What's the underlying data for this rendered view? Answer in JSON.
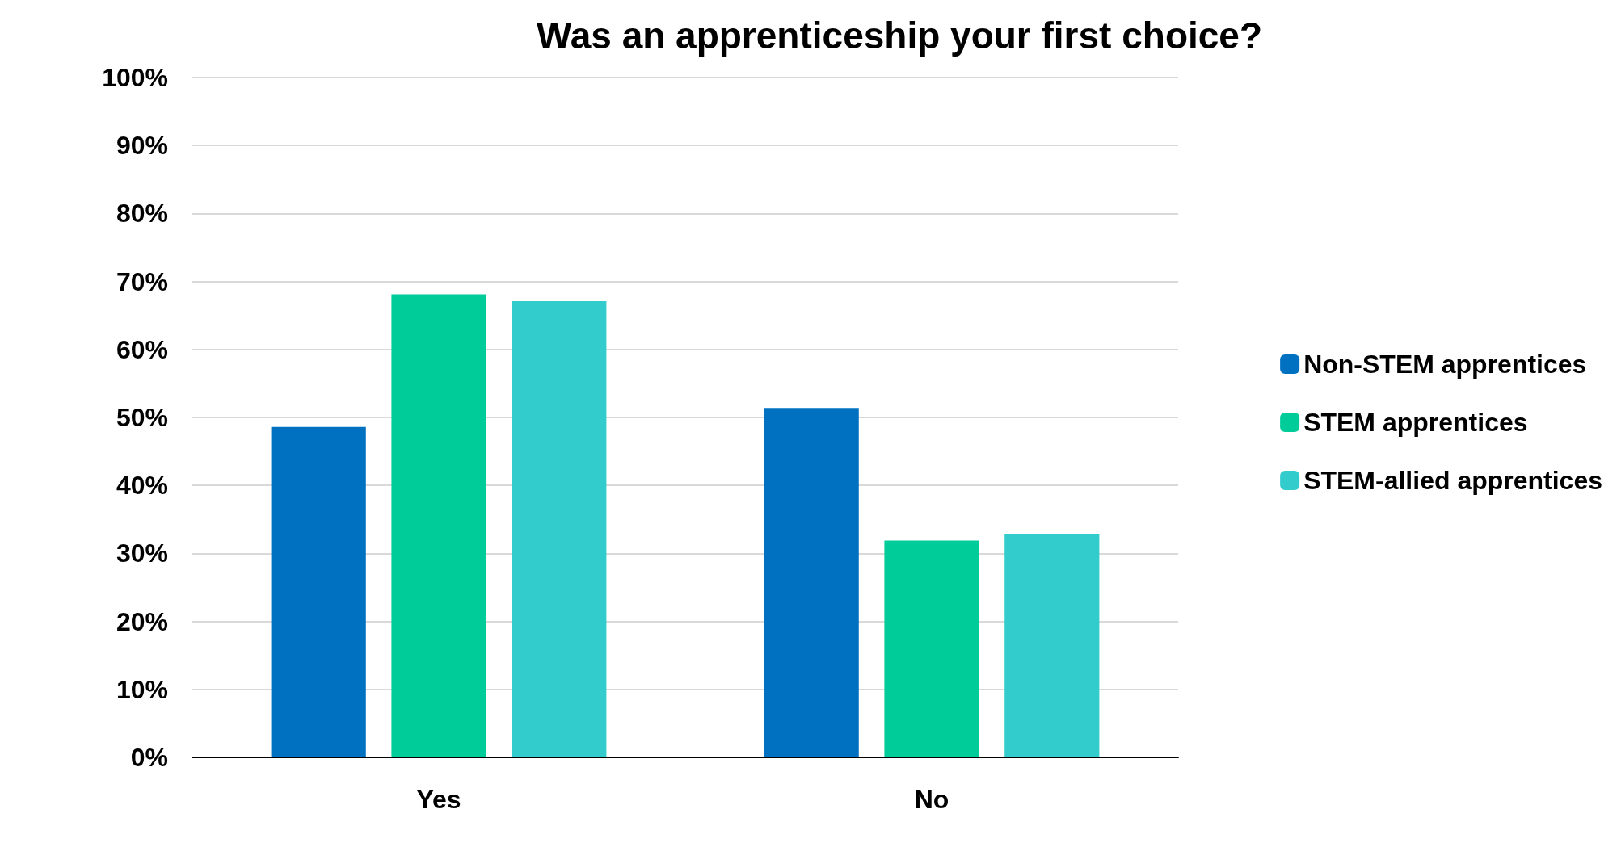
{
  "chart_data": {
    "type": "bar",
    "title": "Was an apprenticeship your first choice?",
    "categories": [
      "Yes",
      "No"
    ],
    "series": [
      {
        "name": "Non-STEM apprentices",
        "color": "#0070c0",
        "values": [
          48.6,
          51.4
        ]
      },
      {
        "name": "STEM apprentices",
        "color": "#00cc99",
        "values": [
          68.1,
          31.9
        ]
      },
      {
        "name": "STEM-allied apprentices",
        "color": "#33cccc",
        "values": [
          67.1,
          32.9
        ]
      }
    ],
    "ylim": [
      0,
      100
    ],
    "yticks": [
      {
        "value": 0,
        "label": "0%"
      },
      {
        "value": 10,
        "label": "10%"
      },
      {
        "value": 20,
        "label": "20%"
      },
      {
        "value": 30,
        "label": "30%"
      },
      {
        "value": 40,
        "label": "40%"
      },
      {
        "value": 50,
        "label": "50%"
      },
      {
        "value": 60,
        "label": "60%"
      },
      {
        "value": 70,
        "label": "70%"
      },
      {
        "value": 80,
        "label": "80%"
      },
      {
        "value": 90,
        "label": "90%"
      },
      {
        "value": 100,
        "label": "100%"
      }
    ],
    "grid": "y",
    "legend": "right"
  }
}
